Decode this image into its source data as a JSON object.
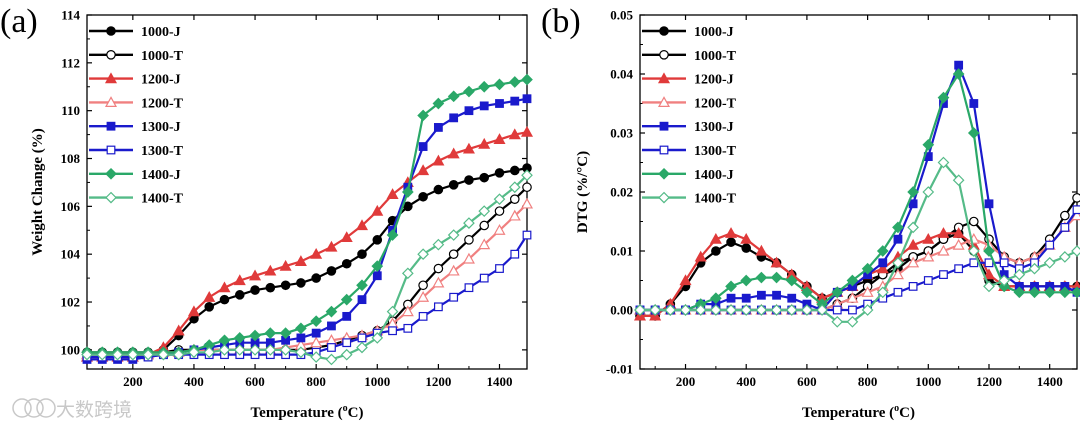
{
  "watermark": "大数跨境",
  "colors": {
    "black": "#000000",
    "red": "#e03a3a",
    "lightred": "#f08080",
    "blue": "#1a1acc",
    "green": "#2aa868",
    "lightgreen": "#55bb88"
  },
  "chart_data": [
    {
      "type": "line",
      "panel_label": "(a)",
      "xlabel": "Temperature (°C)",
      "xlabel_parts": {
        "pre": "Temperature (",
        "sup": "o",
        "post": "C)"
      },
      "ylabel": "Weight Change (%)",
      "xlim": [
        50,
        1490
      ],
      "ylim": [
        99.2,
        114
      ],
      "xticks": [
        "200",
        "400",
        "600",
        "800",
        "1000",
        "1200",
        "1400"
      ],
      "xtick_values": [
        200,
        400,
        600,
        800,
        1000,
        1200,
        1400
      ],
      "yticks": [
        "100",
        "102",
        "104",
        "106",
        "108",
        "110",
        "112",
        "114"
      ],
      "ytick_values": [
        100,
        102,
        104,
        106,
        108,
        110,
        112,
        114
      ],
      "legend_position": "top-left",
      "x": [
        50,
        100,
        150,
        200,
        250,
        300,
        350,
        400,
        450,
        500,
        550,
        600,
        650,
        700,
        750,
        800,
        850,
        900,
        950,
        1000,
        1050,
        1100,
        1150,
        1200,
        1250,
        1300,
        1350,
        1400,
        1450,
        1490
      ],
      "series": [
        {
          "name": "1000-J",
          "color": "#000000",
          "marker": "circle",
          "filled": true,
          "values": [
            99.7,
            99.7,
            99.7,
            99.7,
            99.8,
            100.0,
            100.6,
            101.3,
            101.8,
            102.1,
            102.3,
            102.5,
            102.6,
            102.7,
            102.8,
            103.0,
            103.3,
            103.6,
            104.0,
            104.6,
            105.4,
            106.0,
            106.4,
            106.7,
            106.9,
            107.1,
            107.2,
            107.4,
            107.5,
            107.6
          ]
        },
        {
          "name": "1000-T",
          "color": "#000000",
          "marker": "circle",
          "filled": false,
          "values": [
            99.9,
            99.9,
            99.9,
            99.9,
            99.9,
            99.9,
            100.0,
            100.0,
            100.0,
            100.0,
            100.0,
            100.0,
            100.0,
            100.0,
            100.0,
            100.1,
            100.2,
            100.4,
            100.6,
            100.8,
            101.2,
            101.9,
            102.7,
            103.4,
            104.0,
            104.6,
            105.2,
            105.8,
            106.3,
            106.8
          ]
        },
        {
          "name": "1200-J",
          "color": "#e03a3a",
          "marker": "triangle",
          "filled": true,
          "values": [
            99.7,
            99.7,
            99.7,
            99.7,
            99.8,
            100.1,
            100.8,
            101.6,
            102.2,
            102.6,
            102.9,
            103.1,
            103.3,
            103.5,
            103.7,
            104.0,
            104.3,
            104.7,
            105.2,
            105.8,
            106.5,
            107.0,
            107.5,
            107.9,
            108.2,
            108.4,
            108.6,
            108.8,
            109.0,
            109.1
          ]
        },
        {
          "name": "1200-T",
          "color": "#f08080",
          "marker": "triangle",
          "filled": false,
          "values": [
            99.8,
            99.8,
            99.8,
            99.8,
            99.8,
            99.9,
            99.9,
            100.0,
            100.0,
            100.0,
            100.0,
            100.0,
            100.0,
            100.1,
            100.2,
            100.3,
            100.4,
            100.5,
            100.6,
            100.8,
            101.1,
            101.6,
            102.2,
            102.8,
            103.3,
            103.8,
            104.4,
            105.0,
            105.6,
            106.1
          ]
        },
        {
          "name": "1300-J",
          "color": "#1a1acc",
          "marker": "square",
          "filled": true,
          "values": [
            99.6,
            99.6,
            99.6,
            99.6,
            99.7,
            99.8,
            99.9,
            100.0,
            100.1,
            100.2,
            100.3,
            100.3,
            100.3,
            100.4,
            100.5,
            100.7,
            101.0,
            101.4,
            102.1,
            103.1,
            105.0,
            106.8,
            108.5,
            109.3,
            109.7,
            110.0,
            110.2,
            110.3,
            110.4,
            110.5
          ]
        },
        {
          "name": "1300-T",
          "color": "#1a1acc",
          "marker": "square",
          "filled": false,
          "values": [
            99.7,
            99.7,
            99.7,
            99.7,
            99.7,
            99.8,
            99.8,
            99.8,
            99.8,
            99.8,
            99.8,
            99.8,
            99.8,
            99.8,
            99.8,
            99.9,
            100.1,
            100.3,
            100.5,
            100.7,
            100.8,
            100.9,
            101.4,
            101.8,
            102.2,
            102.6,
            103.0,
            103.4,
            104.0,
            104.8
          ]
        },
        {
          "name": "1400-J",
          "color": "#2aa868",
          "marker": "diamond",
          "filled": true,
          "values": [
            99.9,
            99.9,
            99.9,
            99.9,
            99.9,
            99.9,
            99.9,
            100.0,
            100.2,
            100.4,
            100.5,
            100.6,
            100.7,
            100.7,
            100.9,
            101.2,
            101.6,
            102.1,
            102.7,
            103.5,
            104.8,
            106.6,
            109.8,
            110.3,
            110.6,
            110.8,
            111.0,
            111.1,
            111.2,
            111.3
          ]
        },
        {
          "name": "1400-T",
          "color": "#55bb88",
          "marker": "diamond",
          "filled": false,
          "values": [
            99.8,
            99.8,
            99.8,
            99.8,
            99.8,
            99.8,
            99.8,
            99.9,
            99.9,
            100.0,
            100.0,
            100.0,
            100.0,
            100.0,
            99.9,
            99.7,
            99.6,
            99.8,
            100.1,
            100.5,
            101.6,
            103.2,
            104.0,
            104.4,
            104.8,
            105.3,
            105.8,
            106.3,
            106.8,
            107.3
          ]
        }
      ]
    },
    {
      "type": "line",
      "panel_label": "(b)",
      "xlabel": "Temperature (°C)",
      "xlabel_parts": {
        "pre": "Temperature (",
        "sup": "o",
        "post": "C)"
      },
      "ylabel": "DTG (%/°C)",
      "xlim": [
        50,
        1490
      ],
      "ylim": [
        -0.01,
        0.05
      ],
      "xticks": [
        "200",
        "400",
        "600",
        "800",
        "1000",
        "1200",
        "1400"
      ],
      "xtick_values": [
        200,
        400,
        600,
        800,
        1000,
        1200,
        1400
      ],
      "yticks": [
        "-0.01",
        "0.00",
        "0.01",
        "0.02",
        "0.03",
        "0.04",
        "0.05"
      ],
      "ytick_values": [
        -0.01,
        0,
        0.01,
        0.02,
        0.03,
        0.04,
        0.05
      ],
      "legend_position": "top-left",
      "x": [
        50,
        100,
        150,
        200,
        250,
        300,
        350,
        400,
        450,
        500,
        550,
        600,
        650,
        700,
        750,
        800,
        850,
        900,
        950,
        1000,
        1050,
        1100,
        1150,
        1200,
        1250,
        1300,
        1350,
        1400,
        1450,
        1490
      ],
      "series": [
        {
          "name": "1000-J",
          "color": "#000000",
          "marker": "circle",
          "filled": true,
          "values": [
            -0.001,
            -0.001,
            0.001,
            0.004,
            0.008,
            0.01,
            0.0115,
            0.0105,
            0.009,
            0.008,
            0.006,
            0.004,
            0.002,
            0.003,
            0.004,
            0.005,
            0.006,
            0.007,
            0.009,
            0.01,
            0.012,
            0.013,
            0.01,
            0.005,
            0.004,
            0.004,
            0.004,
            0.004,
            0.004,
            0.004
          ]
        },
        {
          "name": "1000-T",
          "color": "#000000",
          "marker": "circle",
          "filled": false,
          "values": [
            0.0,
            0.0,
            0.0,
            0.0,
            0.0,
            0.0,
            0.0,
            0.0,
            0.0,
            0.0,
            0.0,
            0.0,
            0.0,
            0.001,
            0.002,
            0.004,
            0.006,
            0.008,
            0.009,
            0.01,
            0.012,
            0.014,
            0.015,
            0.012,
            0.009,
            0.008,
            0.009,
            0.012,
            0.016,
            0.019
          ]
        },
        {
          "name": "1200-J",
          "color": "#e03a3a",
          "marker": "triangle",
          "filled": true,
          "values": [
            -0.001,
            -0.001,
            0.001,
            0.005,
            0.009,
            0.012,
            0.013,
            0.012,
            0.01,
            0.008,
            0.006,
            0.004,
            0.002,
            0.003,
            0.004,
            0.006,
            0.007,
            0.009,
            0.011,
            0.012,
            0.013,
            0.013,
            0.011,
            0.006,
            0.004,
            0.004,
            0.004,
            0.004,
            0.004,
            0.004
          ]
        },
        {
          "name": "1200-T",
          "color": "#f08080",
          "marker": "triangle",
          "filled": false,
          "values": [
            0.0,
            0.0,
            0.0,
            0.0,
            0.0,
            0.0,
            0.0,
            0.0,
            0.0,
            0.0,
            0.0,
            0.0,
            0.0,
            0.001,
            0.002,
            0.003,
            0.004,
            0.006,
            0.008,
            0.009,
            0.01,
            0.011,
            0.012,
            0.011,
            0.009,
            0.008,
            0.009,
            0.011,
            0.014,
            0.016
          ]
        },
        {
          "name": "1300-J",
          "color": "#1a1acc",
          "marker": "square",
          "filled": true,
          "values": [
            0.0,
            0.0,
            0.0,
            0.0,
            0.001,
            0.001,
            0.002,
            0.002,
            0.0025,
            0.0025,
            0.002,
            0.001,
            0.0,
            0.003,
            0.004,
            0.006,
            0.008,
            0.012,
            0.018,
            0.026,
            0.035,
            0.0415,
            0.035,
            0.018,
            0.006,
            0.004,
            0.004,
            0.004,
            0.004,
            0.003
          ]
        },
        {
          "name": "1300-T",
          "color": "#1a1acc",
          "marker": "square",
          "filled": false,
          "values": [
            0.0,
            0.0,
            0.0,
            0.0,
            0.0,
            0.0,
            0.0,
            0.0,
            0.0,
            0.0,
            0.0,
            0.0,
            0.0,
            0.0,
            0.0,
            0.001,
            0.002,
            0.003,
            0.004,
            0.005,
            0.006,
            0.007,
            0.008,
            0.008,
            0.008,
            0.007,
            0.008,
            0.011,
            0.014,
            0.017
          ]
        },
        {
          "name": "1400-J",
          "color": "#2aa868",
          "marker": "diamond",
          "filled": true,
          "values": [
            0.0,
            0.0,
            0.0,
            0.0,
            0.001,
            0.002,
            0.004,
            0.005,
            0.0055,
            0.0055,
            0.005,
            0.003,
            0.001,
            0.003,
            0.005,
            0.007,
            0.01,
            0.014,
            0.02,
            0.028,
            0.036,
            0.04,
            0.03,
            0.01,
            0.004,
            0.003,
            0.003,
            0.003,
            0.003,
            0.003
          ]
        },
        {
          "name": "1400-T",
          "color": "#55bb88",
          "marker": "diamond",
          "filled": false,
          "values": [
            0.0,
            0.0,
            0.0,
            0.0,
            0.0,
            0.0,
            0.0,
            0.0,
            0.0,
            0.0,
            0.0,
            0.0,
            0.0,
            -0.002,
            -0.002,
            0.0,
            0.003,
            0.008,
            0.014,
            0.02,
            0.025,
            0.022,
            0.01,
            0.004,
            0.005,
            0.006,
            0.007,
            0.008,
            0.009,
            0.01
          ]
        }
      ]
    }
  ]
}
